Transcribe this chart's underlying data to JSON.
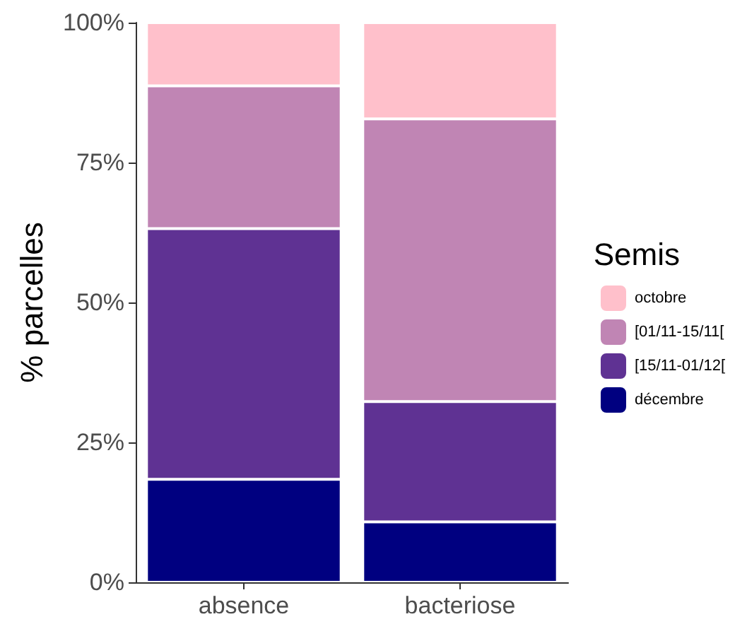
{
  "chart_data": {
    "type": "bar",
    "stacked": true,
    "ylabel": "% parcelles",
    "legend_title": "Semis",
    "legend": "right",
    "categories": [
      "absence",
      "bacteriose"
    ],
    "series": [
      {
        "name": "décembre",
        "color": "#000080",
        "values": [
          18.4,
          10.8
        ]
      },
      {
        "name": "[15/11-01/12[",
        "color": "#5f3293",
        "values": [
          44.8,
          21.5
        ]
      },
      {
        "name": "[01/11-15/11[",
        "color": "#c085b4",
        "values": [
          25.5,
          50.5
        ]
      },
      {
        "name": "octobre",
        "color": "#ffc0cb",
        "values": [
          11.3,
          17.2
        ]
      }
    ],
    "ylim": [
      0,
      100
    ],
    "yticks": [
      {
        "value": 0,
        "label": "0%"
      },
      {
        "value": 25,
        "label": "25%"
      },
      {
        "value": 50,
        "label": "50%"
      },
      {
        "value": 75,
        "label": "75%"
      },
      {
        "value": 100,
        "label": "100%"
      }
    ],
    "grid": false
  }
}
